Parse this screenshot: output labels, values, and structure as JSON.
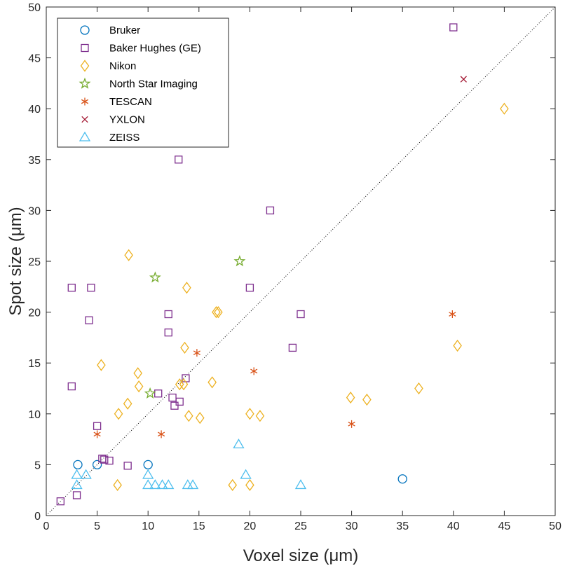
{
  "chart_data": {
    "type": "scatter",
    "title": "",
    "xlabel": "Voxel size (μm)",
    "ylabel": "Spot size (μm)",
    "xlim": [
      0,
      50
    ],
    "ylim": [
      0,
      50
    ],
    "xticks": [
      0,
      5,
      10,
      15,
      20,
      25,
      30,
      35,
      40,
      45,
      50
    ],
    "yticks": [
      0,
      5,
      10,
      15,
      20,
      25,
      30,
      35,
      40,
      45,
      50
    ],
    "grid": false,
    "legend_position": "top-left",
    "reference_line": {
      "name": "y = x",
      "style": "dotted",
      "color": "#000000"
    },
    "series": [
      {
        "name": "Bruker",
        "marker": "circle",
        "color": "#0072BD",
        "points": [
          [
            3.1,
            5.0
          ],
          [
            5.0,
            5.0
          ],
          [
            10.0,
            5.0
          ],
          [
            35.0,
            3.6
          ]
        ]
      },
      {
        "name": "Baker Hughes (GE)",
        "marker": "square",
        "color": "#7E2F8E",
        "points": [
          [
            40.0,
            48.0
          ],
          [
            13.0,
            35.0
          ],
          [
            22.0,
            30.0
          ],
          [
            2.5,
            22.4
          ],
          [
            4.4,
            22.4
          ],
          [
            20.0,
            22.4
          ],
          [
            4.2,
            19.2
          ],
          [
            12.0,
            19.8
          ],
          [
            25.0,
            19.8
          ],
          [
            12.0,
            18.0
          ],
          [
            24.2,
            16.5
          ],
          [
            13.7,
            13.5
          ],
          [
            2.5,
            12.7
          ],
          [
            11.0,
            12.0
          ],
          [
            12.4,
            11.6
          ],
          [
            13.1,
            11.2
          ],
          [
            12.6,
            10.8
          ],
          [
            5.0,
            8.8
          ],
          [
            5.5,
            5.6
          ],
          [
            5.7,
            5.5
          ],
          [
            6.2,
            5.4
          ],
          [
            8.0,
            4.9
          ],
          [
            3.0,
            2.0
          ],
          [
            1.4,
            1.4
          ]
        ]
      },
      {
        "name": "Nikon",
        "marker": "diamond",
        "color": "#EDB120",
        "points": [
          [
            45.0,
            40.0
          ],
          [
            8.1,
            25.6
          ],
          [
            13.8,
            22.4
          ],
          [
            16.7,
            20.0
          ],
          [
            16.9,
            20.0
          ],
          [
            40.4,
            16.7
          ],
          [
            13.6,
            16.5
          ],
          [
            5.4,
            14.8
          ],
          [
            9.0,
            14.0
          ],
          [
            16.3,
            13.1
          ],
          [
            13.1,
            12.9
          ],
          [
            13.5,
            12.9
          ],
          [
            9.1,
            12.7
          ],
          [
            36.6,
            12.5
          ],
          [
            29.9,
            11.6
          ],
          [
            31.5,
            11.4
          ],
          [
            8.0,
            11.0
          ],
          [
            7.1,
            10.0
          ],
          [
            14.0,
            9.8
          ],
          [
            15.1,
            9.6
          ],
          [
            20.0,
            10.0
          ],
          [
            21.0,
            9.8
          ],
          [
            7.0,
            3.0
          ],
          [
            18.3,
            3.0
          ],
          [
            20.0,
            3.0
          ]
        ]
      },
      {
        "name": "North Star Imaging",
        "marker": "pentagram",
        "color": "#77AC30",
        "points": [
          [
            19.0,
            25.0
          ],
          [
            10.7,
            23.4
          ],
          [
            10.2,
            12.0
          ]
        ]
      },
      {
        "name": "TESCAN",
        "marker": "asterisk",
        "color": "#D95319",
        "points": [
          [
            39.9,
            19.8
          ],
          [
            14.8,
            16.0
          ],
          [
            20.4,
            14.2
          ],
          [
            5.0,
            8.0
          ],
          [
            11.3,
            8.0
          ],
          [
            30.0,
            9.0
          ]
        ]
      },
      {
        "name": "YXLON",
        "marker": "x",
        "color": "#A2142F",
        "points": [
          [
            41.0,
            42.9
          ]
        ]
      },
      {
        "name": "ZEISS",
        "marker": "triangle",
        "color": "#4DBEEE",
        "points": [
          [
            18.9,
            7.0
          ],
          [
            3.0,
            4.0
          ],
          [
            3.9,
            4.0
          ],
          [
            10.0,
            4.0
          ],
          [
            19.6,
            4.0
          ],
          [
            3.0,
            3.0
          ],
          [
            10.0,
            3.0
          ],
          [
            10.7,
            3.0
          ],
          [
            11.4,
            3.0
          ],
          [
            12.0,
            3.0
          ],
          [
            13.9,
            3.0
          ],
          [
            14.4,
            3.0
          ],
          [
            25.0,
            3.0
          ]
        ]
      }
    ]
  }
}
